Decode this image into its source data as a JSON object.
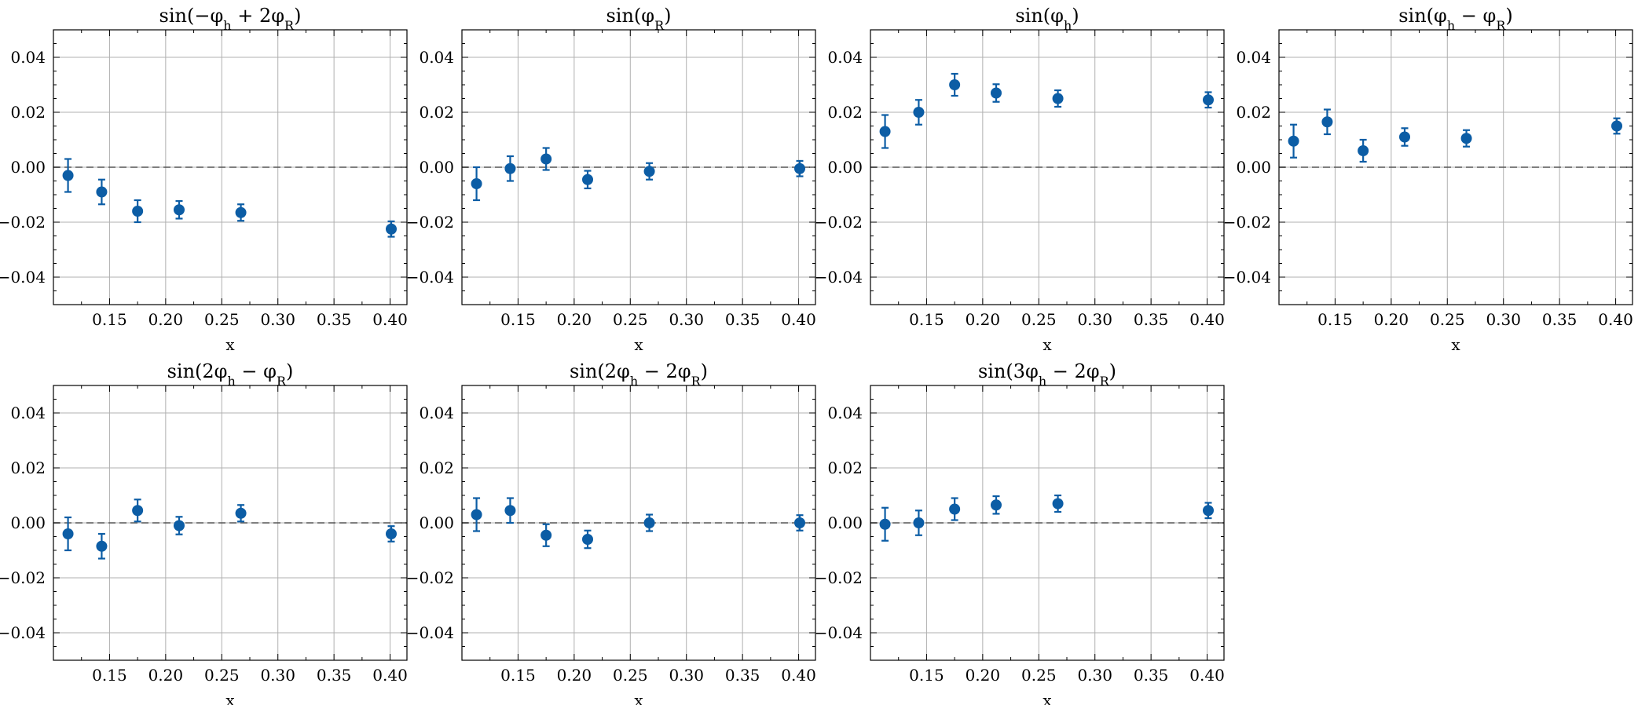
{
  "colors": {
    "series": "#0c5da5",
    "grid": "#b0b0b0",
    "zero_line": "#555555"
  },
  "chart_data": [
    {
      "type": "scatter",
      "title": "sin(−φ_h + 2φ_R)",
      "xlabel": "x",
      "ylabel": "",
      "xlim": [
        0.1,
        0.415
      ],
      "ylim": [
        -0.05,
        0.05
      ],
      "xticks": [
        "0.15",
        "0.20",
        "0.25",
        "0.30",
        "0.35",
        "0.40"
      ],
      "yticks": [
        "−0.04",
        "−0.02",
        "0.00",
        "0.02",
        "0.04"
      ],
      "grid": true,
      "reference_line_y": 0,
      "x": [
        0.113,
        0.143,
        0.175,
        0.212,
        0.267,
        0.401
      ],
      "y": [
        -0.003,
        -0.009,
        -0.016,
        -0.0155,
        -0.0165,
        -0.0225
      ],
      "yerr": [
        0.006,
        0.0045,
        0.004,
        0.0032,
        0.003,
        0.0028
      ]
    },
    {
      "type": "scatter",
      "title": "sin(φ_R)",
      "xlabel": "x",
      "ylabel": "",
      "xlim": [
        0.1,
        0.415
      ],
      "ylim": [
        -0.05,
        0.05
      ],
      "xticks": [
        "0.15",
        "0.20",
        "0.25",
        "0.30",
        "0.35",
        "0.40"
      ],
      "yticks": [
        "−0.04",
        "−0.02",
        "0.00",
        "0.02",
        "0.04"
      ],
      "grid": true,
      "reference_line_y": 0,
      "x": [
        0.113,
        0.143,
        0.175,
        0.212,
        0.267,
        0.401
      ],
      "y": [
        -0.006,
        -0.0005,
        0.003,
        -0.0045,
        -0.0015,
        -0.0005
      ],
      "yerr": [
        0.006,
        0.0045,
        0.004,
        0.0032,
        0.003,
        0.0028
      ]
    },
    {
      "type": "scatter",
      "title": "sin(φ_h)",
      "xlabel": "x",
      "ylabel": "",
      "xlim": [
        0.1,
        0.415
      ],
      "ylim": [
        -0.05,
        0.05
      ],
      "xticks": [
        "0.15",
        "0.20",
        "0.25",
        "0.30",
        "0.35",
        "0.40"
      ],
      "yticks": [
        "−0.04",
        "−0.02",
        "0.00",
        "0.02",
        "0.04"
      ],
      "grid": true,
      "reference_line_y": 0,
      "x": [
        0.113,
        0.143,
        0.175,
        0.212,
        0.267,
        0.401
      ],
      "y": [
        0.013,
        0.02,
        0.03,
        0.027,
        0.025,
        0.0245
      ],
      "yerr": [
        0.006,
        0.0045,
        0.004,
        0.0032,
        0.003,
        0.0028
      ]
    },
    {
      "type": "scatter",
      "title": "sin(φ_h − φ_R)",
      "xlabel": "x",
      "ylabel": "",
      "xlim": [
        0.1,
        0.415
      ],
      "ylim": [
        -0.05,
        0.05
      ],
      "xticks": [
        "0.15",
        "0.20",
        "0.25",
        "0.30",
        "0.35",
        "0.40"
      ],
      "yticks": [
        "−0.04",
        "−0.02",
        "0.00",
        "0.02",
        "0.04"
      ],
      "grid": true,
      "reference_line_y": 0,
      "x": [
        0.113,
        0.143,
        0.175,
        0.212,
        0.267,
        0.401
      ],
      "y": [
        0.0095,
        0.0165,
        0.006,
        0.011,
        0.0105,
        0.015
      ],
      "yerr": [
        0.006,
        0.0045,
        0.004,
        0.0032,
        0.003,
        0.0028
      ]
    },
    {
      "type": "scatter",
      "title": "sin(2φ_h − φ_R)",
      "xlabel": "x",
      "ylabel": "",
      "xlim": [
        0.1,
        0.415
      ],
      "ylim": [
        -0.05,
        0.05
      ],
      "xticks": [
        "0.15",
        "0.20",
        "0.25",
        "0.30",
        "0.35",
        "0.40"
      ],
      "yticks": [
        "−0.04",
        "−0.02",
        "0.00",
        "0.02",
        "0.04"
      ],
      "grid": true,
      "reference_line_y": 0,
      "x": [
        0.113,
        0.143,
        0.175,
        0.212,
        0.267,
        0.401
      ],
      "y": [
        -0.004,
        -0.0085,
        0.0045,
        -0.001,
        0.0035,
        -0.004
      ],
      "yerr": [
        0.006,
        0.0045,
        0.004,
        0.0032,
        0.003,
        0.0028
      ]
    },
    {
      "type": "scatter",
      "title": "sin(2φ_h − 2φ_R)",
      "xlabel": "x",
      "ylabel": "",
      "xlim": [
        0.1,
        0.415
      ],
      "ylim": [
        -0.05,
        0.05
      ],
      "xticks": [
        "0.15",
        "0.20",
        "0.25",
        "0.30",
        "0.35",
        "0.40"
      ],
      "yticks": [
        "−0.04",
        "−0.02",
        "0.00",
        "0.02",
        "0.04"
      ],
      "grid": true,
      "reference_line_y": 0,
      "x": [
        0.113,
        0.143,
        0.175,
        0.212,
        0.267,
        0.401
      ],
      "y": [
        0.003,
        0.0045,
        -0.0045,
        -0.006,
        0.0,
        0.0
      ],
      "yerr": [
        0.006,
        0.0045,
        0.004,
        0.0032,
        0.003,
        0.0028
      ]
    },
    {
      "type": "scatter",
      "title": "sin(3φ_h − 2φ_R)",
      "xlabel": "x",
      "ylabel": "",
      "xlim": [
        0.1,
        0.415
      ],
      "ylim": [
        -0.05,
        0.05
      ],
      "xticks": [
        "0.15",
        "0.20",
        "0.25",
        "0.30",
        "0.35",
        "0.40"
      ],
      "yticks": [
        "−0.04",
        "−0.02",
        "0.00",
        "0.02",
        "0.04"
      ],
      "grid": true,
      "reference_line_y": 0,
      "x": [
        0.113,
        0.143,
        0.175,
        0.212,
        0.267,
        0.401
      ],
      "y": [
        -0.0005,
        0.0,
        0.005,
        0.0065,
        0.007,
        0.0045
      ],
      "yerr": [
        0.006,
        0.0045,
        0.004,
        0.0032,
        0.003,
        0.0028
      ]
    }
  ]
}
